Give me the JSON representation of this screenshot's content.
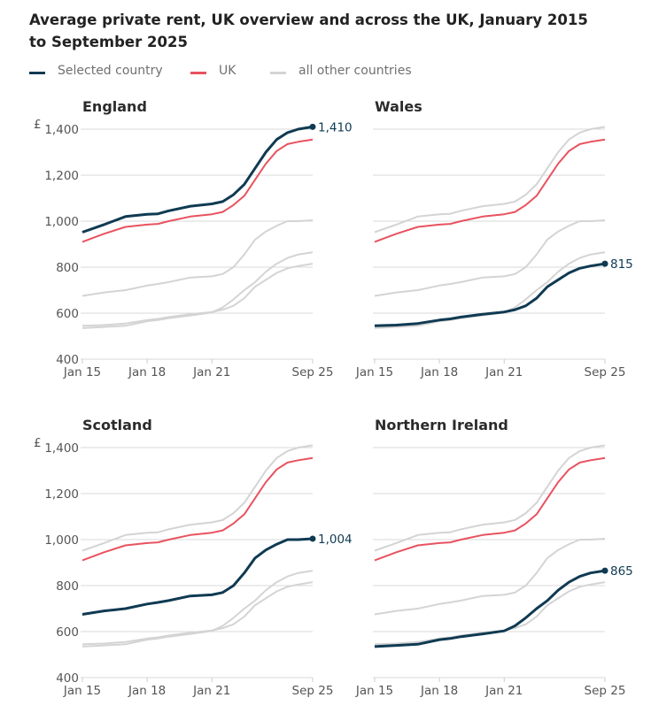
{
  "title": "Average private rent, UK overview and across the UK, January 2015 to September 2025",
  "legend": [
    {
      "label": "Selected country",
      "color": "#0f3a52"
    },
    {
      "label": "UK",
      "color": "#e8525f"
    },
    {
      "label": "all other countries",
      "color": "#d4d4d4"
    }
  ],
  "chart_data": {
    "type": "line",
    "title": "Average private rent, UK overview and across the UK, January 2015 to September 2025",
    "ylabel": "£",
    "ylim": [
      400,
      1400
    ],
    "yticks": [
      400,
      600,
      800,
      1000,
      1200,
      1400
    ],
    "ytick_labels": [
      "400",
      "600",
      "800",
      "1,000",
      "1,200",
      "1,400"
    ],
    "y_unit": "£",
    "xticks": [
      "Jan 15",
      "Jan 18",
      "Jan 21",
      "Sep 25"
    ],
    "xtick_positions": [
      2015.0,
      2018.0,
      2021.0,
      2025.667
    ],
    "xlim": [
      2015.0,
      2025.667
    ],
    "grid": true,
    "legend_position": "top-left",
    "x": [
      2015.0,
      2016.0,
      2017.0,
      2018.0,
      2018.5,
      2019.0,
      2020.0,
      2021.0,
      2021.5,
      2022.0,
      2022.5,
      2023.0,
      2023.5,
      2024.0,
      2024.5,
      2025.0,
      2025.667
    ],
    "series": [
      {
        "name": "England",
        "values": [
          952,
          985,
          1020,
          1030,
          1032,
          1045,
          1065,
          1075,
          1085,
          1115,
          1160,
          1230,
          1300,
          1355,
          1385,
          1400,
          1410
        ]
      },
      {
        "name": "Wales",
        "values": [
          545,
          548,
          555,
          570,
          575,
          583,
          595,
          605,
          615,
          632,
          665,
          715,
          745,
          775,
          795,
          805,
          815
        ]
      },
      {
        "name": "Scotland",
        "values": [
          675,
          690,
          700,
          720,
          727,
          735,
          755,
          760,
          770,
          800,
          855,
          920,
          955,
          980,
          1000,
          1000,
          1004
        ]
      },
      {
        "name": "Northern Ireland",
        "values": [
          535,
          540,
          545,
          565,
          570,
          578,
          590,
          603,
          625,
          660,
          700,
          735,
          780,
          815,
          840,
          855,
          865
        ]
      },
      {
        "name": "UK",
        "values": [
          910,
          945,
          975,
          985,
          988,
          1000,
          1020,
          1030,
          1040,
          1070,
          1110,
          1180,
          1250,
          1305,
          1335,
          1345,
          1355
        ]
      }
    ],
    "panels": [
      {
        "title": "England",
        "selected": "England",
        "end_label": "1,410",
        "show_y_labels": true
      },
      {
        "title": "Wales",
        "selected": "Wales",
        "end_label": "815",
        "show_y_labels": false
      },
      {
        "title": "Scotland",
        "selected": "Scotland",
        "end_label": "1,004",
        "show_y_labels": true
      },
      {
        "title": "Northern Ireland",
        "selected": "Northern Ireland",
        "end_label": "865",
        "show_y_labels": false
      }
    ]
  }
}
